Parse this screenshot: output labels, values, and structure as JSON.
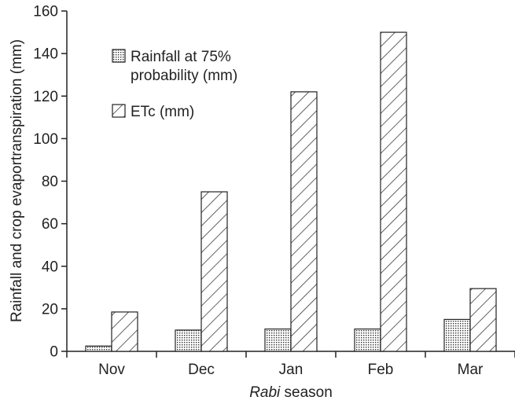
{
  "chart_data": {
    "type": "bar",
    "categories": [
      "Nov",
      "Dec",
      "Jan",
      "Feb",
      "Mar"
    ],
    "series": [
      {
        "name": "Rainfall at 75% probability (mm)",
        "values": [
          2.5,
          10,
          10.5,
          10.5,
          15
        ],
        "pattern": "dots"
      },
      {
        "name": "ETc (mm)",
        "values": [
          18.5,
          75,
          122,
          150,
          29.5
        ],
        "pattern": "hatch"
      }
    ],
    "xlabel_italic": "Rabi",
    "xlabel_rest": " season",
    "ylabel": "Rainfall and crop evaportranspiration (mm)",
    "ylim": [
      0,
      160
    ],
    "yticks": [
      0,
      20,
      40,
      60,
      80,
      100,
      120,
      140,
      160
    ],
    "legend": {
      "placement": "top-left",
      "entries": [
        {
          "lines": [
            "Rainfall at 75%",
            "probability (mm)"
          ],
          "pattern": "dots"
        },
        {
          "lines": [
            "ETc (mm)"
          ],
          "pattern": "hatch"
        }
      ]
    },
    "grid": false
  }
}
